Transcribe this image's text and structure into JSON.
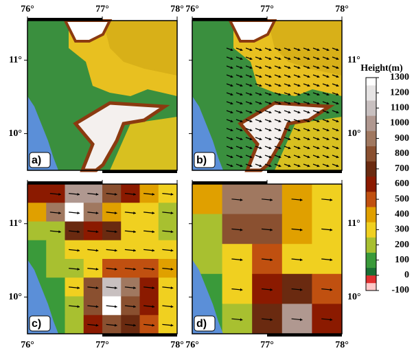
{
  "panels": [
    {
      "label": "a)"
    },
    {
      "label": "b)"
    },
    {
      "label": "c)",
      "grid": [
        [
          550,
          600,
          950,
          1000,
          750,
          600,
          350,
          300
        ],
        [
          400,
          900,
          1250,
          850,
          400,
          300,
          250,
          200
        ],
        [
          150,
          200,
          650,
          600,
          650,
          300,
          250,
          200
        ],
        [
          100,
          150,
          300,
          300,
          300,
          300,
          300,
          250
        ],
        [
          100,
          150,
          200,
          300,
          450,
          450,
          450,
          400
        ],
        [
          100,
          100,
          250,
          750,
          1100,
          900,
          600,
          300
        ],
        [
          50,
          100,
          200,
          800,
          1250,
          800,
          600,
          300
        ],
        [
          50,
          50,
          150,
          600,
          800,
          650,
          500,
          250
        ]
      ]
    },
    {
      "label": "d)",
      "grid": [
        [
          350,
          850,
          850,
          400,
          250
        ],
        [
          200,
          800,
          750,
          400,
          250
        ],
        [
          150,
          300,
          450,
          300,
          300
        ],
        [
          100,
          250,
          600,
          700,
          500
        ],
        [
          100,
          200,
          650,
          1000,
          600
        ]
      ]
    }
  ],
  "axes": {
    "lon_lim": [
      76,
      78
    ],
    "lat_lim": [
      9.5,
      11.54
    ],
    "lon_ticks": [
      {
        "value": 76,
        "label": "76°"
      },
      {
        "value": 77,
        "label": "77°"
      },
      {
        "value": 78,
        "label": "78°"
      }
    ],
    "lat_ticks": [
      {
        "value": 11,
        "label": "11°"
      },
      {
        "value": 10,
        "label": "10°"
      }
    ]
  },
  "colorbar": {
    "title": "Height(m)",
    "lim": [
      -100,
      1300
    ],
    "ticks": [
      -100,
      0,
      100,
      200,
      300,
      400,
      500,
      600,
      700,
      800,
      900,
      1000,
      1100,
      1200,
      1300
    ]
  }
}
